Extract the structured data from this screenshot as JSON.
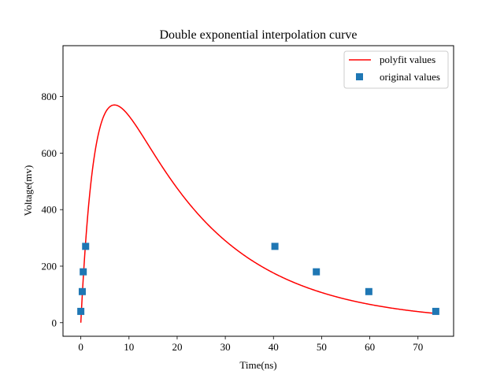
{
  "chart_data": {
    "type": "scatter",
    "title": "Double exponential interpolation curve",
    "xlabel": "Time(ns)",
    "ylabel": "Voltage(mv)",
    "xlim": [
      -3.7,
      77.4
    ],
    "ylim": [
      -48,
      980
    ],
    "xticks": [
      0,
      10,
      20,
      30,
      40,
      50,
      60,
      70
    ],
    "yticks": [
      0,
      200,
      400,
      600,
      800
    ],
    "grid": false,
    "legend_position": "top-right",
    "series": [
      {
        "name": "polyfit values",
        "kind": "line",
        "color": "#ff0000",
        "model": {
          "form": "A*(exp(-t/tau1) - exp(-t/tau2))",
          "A": 1300,
          "tau1": 20,
          "tau2": 3.2
        },
        "x_range": [
          0,
          73.7
        ]
      },
      {
        "name": "original values",
        "kind": "markers",
        "marker": "square",
        "color": "#1f77b4",
        "x": [
          0,
          0.3,
          0.5,
          1.0,
          40.3,
          48.9,
          59.8,
          73.7
        ],
        "y": [
          40,
          110,
          180,
          270,
          270,
          180,
          110,
          40
        ]
      }
    ]
  }
}
